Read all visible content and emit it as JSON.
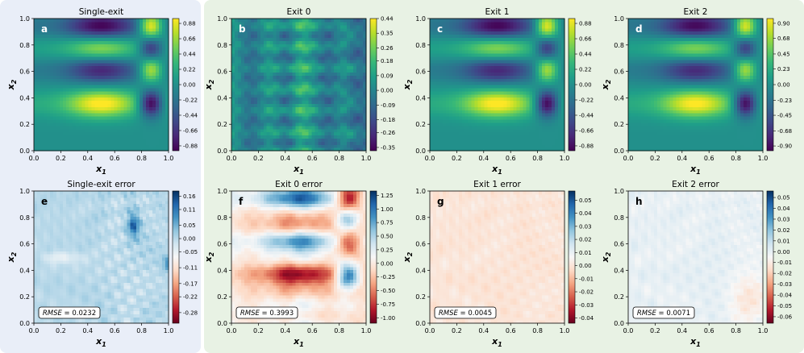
{
  "figure": {
    "xlabel_main": "x",
    "xlabel_sub": "1",
    "ylabel_main": "x",
    "ylabel_sub": "2",
    "rmse_label": "RMSE"
  },
  "colors": {
    "left_panel_bg": "#e9eef8",
    "right_panel_bg": "#e8f2e4",
    "viridis": [
      "#440154",
      "#482878",
      "#3e4989",
      "#31688e",
      "#26828e",
      "#1f9e89",
      "#35b779",
      "#6ece58",
      "#b5de2b",
      "#fde725"
    ],
    "rdbu": [
      "#67001f",
      "#b2182b",
      "#d6604d",
      "#f4a582",
      "#fddbc7",
      "#f7f7f7",
      "#d1e5f0",
      "#92c5de",
      "#4393c3",
      "#2166ac",
      "#053061"
    ]
  },
  "chart_data": [
    {
      "id": "a",
      "type": "heatmap",
      "colormap": "viridis",
      "title": "Single-exit",
      "xlim": [
        0,
        1
      ],
      "ylim": [
        0,
        1
      ],
      "xticks": [
        "0.0",
        "0.2",
        "0.4",
        "0.6",
        "0.8",
        "1.0"
      ],
      "yticks": [
        "0.0",
        "0.2",
        "0.4",
        "0.6",
        "0.8",
        "1.0"
      ],
      "colorbar_ticks": [
        "0.88",
        "0.66",
        "0.44",
        "0.22",
        "0.00",
        "-0.22",
        "-0.44",
        "-0.66",
        "-0.88"
      ],
      "cmin": -0.95,
      "cmax": 0.95
    },
    {
      "id": "b",
      "type": "heatmap",
      "colormap": "viridis",
      "title": "Exit 0",
      "xlim": [
        0,
        1
      ],
      "ylim": [
        0,
        1
      ],
      "xticks": [
        "0.0",
        "0.2",
        "0.4",
        "0.6",
        "0.8",
        "1.0"
      ],
      "yticks": [
        "0.0",
        "0.2",
        "0.4",
        "0.6",
        "0.8",
        "1.0"
      ],
      "colorbar_ticks": [
        "0.44",
        "0.35",
        "0.26",
        "0.18",
        "0.09",
        "0.00",
        "-0.09",
        "-0.18",
        "-0.26",
        "-0.35"
      ],
      "cmin": -0.37,
      "cmax": 0.44
    },
    {
      "id": "c",
      "type": "heatmap",
      "colormap": "viridis",
      "title": "Exit 1",
      "xlim": [
        0,
        1
      ],
      "ylim": [
        0,
        1
      ],
      "xticks": [
        "0.0",
        "0.2",
        "0.4",
        "0.6",
        "0.8",
        "1.0"
      ],
      "yticks": [
        "0.0",
        "0.2",
        "0.4",
        "0.6",
        "0.8",
        "1.0"
      ],
      "colorbar_ticks": [
        "0.88",
        "0.66",
        "0.44",
        "0.22",
        "0.00",
        "-0.22",
        "-0.44",
        "-0.66",
        "-0.88"
      ],
      "cmin": -0.95,
      "cmax": 0.95
    },
    {
      "id": "d",
      "type": "heatmap",
      "colormap": "viridis",
      "title": "Exit 2",
      "xlim": [
        0,
        1
      ],
      "ylim": [
        0,
        1
      ],
      "xticks": [
        "0.0",
        "0.2",
        "0.4",
        "0.6",
        "0.8",
        "1.0"
      ],
      "yticks": [
        "0.0",
        "0.2",
        "0.4",
        "0.6",
        "0.8",
        "1.0"
      ],
      "colorbar_ticks": [
        "0.90",
        "0.68",
        "0.45",
        "0.23",
        "0.00",
        "-0.23",
        "-0.45",
        "-0.68",
        "-0.90"
      ],
      "cmin": -0.97,
      "cmax": 0.97
    },
    {
      "id": "e",
      "type": "heatmap",
      "colormap": "RdBu",
      "title": "Single-exit error",
      "rmse": "0.0232",
      "xlim": [
        0,
        1
      ],
      "ylim": [
        0,
        1
      ],
      "xticks": [
        "0.0",
        "0.2",
        "0.4",
        "0.6",
        "0.8",
        "1.0"
      ],
      "yticks": [
        "0.0",
        "0.2",
        "0.4",
        "0.6",
        "0.8",
        "1.0"
      ],
      "colorbar_ticks": [
        "0.16",
        "0.11",
        "0.05",
        "0.00",
        "-0.05",
        "-0.11",
        "-0.17",
        "-0.22",
        "-0.28"
      ],
      "cmin": -0.32,
      "cmax": 0.18
    },
    {
      "id": "f",
      "type": "heatmap",
      "colormap": "RdBu",
      "title": "Exit 0 error",
      "rmse": "0.3993",
      "xlim": [
        0,
        1
      ],
      "ylim": [
        0,
        1
      ],
      "xticks": [
        "0.0",
        "0.2",
        "0.4",
        "0.6",
        "0.8",
        "1.0"
      ],
      "yticks": [
        "0.0",
        "0.2",
        "0.4",
        "0.6",
        "0.8",
        "1.0"
      ],
      "colorbar_ticks": [
        "1.25",
        "1.00",
        "0.75",
        "0.50",
        "0.25",
        "0.00",
        "-0.25",
        "-0.50",
        "-0.75",
        "-1.00"
      ],
      "cmin": -1.1,
      "cmax": 1.33
    },
    {
      "id": "g",
      "type": "heatmap",
      "colormap": "RdBu",
      "title": "Exit 1 error",
      "rmse": "0.0045",
      "xlim": [
        0,
        1
      ],
      "ylim": [
        0,
        1
      ],
      "xticks": [
        "0.0",
        "0.2",
        "0.4",
        "0.6",
        "0.8",
        "1.0"
      ],
      "yticks": [
        "0.0",
        "0.2",
        "0.4",
        "0.6",
        "0.8",
        "1.0"
      ],
      "colorbar_ticks": [
        "0.05",
        "0.04",
        "0.03",
        "0.02",
        "0.01",
        "0.00",
        "-0.01",
        "-0.02",
        "-0.03",
        "-0.04"
      ],
      "cmin": -0.044,
      "cmax": 0.057
    },
    {
      "id": "h",
      "type": "heatmap",
      "colormap": "RdBu",
      "title": "Exit 2 error",
      "rmse": "0.0071",
      "xlim": [
        0,
        1
      ],
      "ylim": [
        0,
        1
      ],
      "xticks": [
        "0.0",
        "0.2",
        "0.4",
        "0.6",
        "0.8",
        "1.0"
      ],
      "yticks": [
        "0.0",
        "0.2",
        "0.4",
        "0.6",
        "0.8",
        "1.0"
      ],
      "colorbar_ticks": [
        "0.05",
        "0.04",
        "0.03",
        "0.02",
        "0.01",
        "0.00",
        "-0.01",
        "-0.02",
        "-0.03",
        "-0.04",
        "-0.05",
        "-0.06"
      ],
      "cmin": -0.066,
      "cmax": 0.056
    }
  ]
}
